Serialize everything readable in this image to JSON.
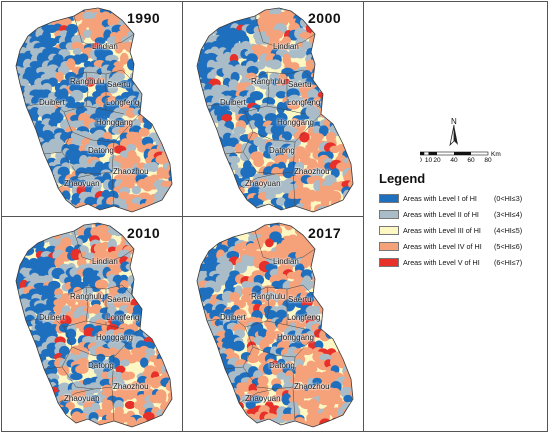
{
  "panels": [
    {
      "year": "1990",
      "seed": 3
    },
    {
      "year": "2000",
      "seed": 11
    },
    {
      "year": "2010",
      "seed": 23
    },
    {
      "year": "2017",
      "seed": 37
    }
  ],
  "places": [
    "Lindian",
    "Ranghulu",
    "Saertu",
    "Longfeng",
    "Honggang",
    "Duibert",
    "Datong",
    "Zhaoyuan",
    "Zhaozhou"
  ],
  "legend": {
    "title": "Legend",
    "items": [
      {
        "label": "Areas with Level  I of HI",
        "range": "(0<HI≤3)",
        "color": "#1f6fbf"
      },
      {
        "label": "Areas with Level  II of HI",
        "range": "(3<HI≤4)",
        "color": "#a9bcc8"
      },
      {
        "label": "Areas with Level  III of HI",
        "range": "(4<HI≤5)",
        "color": "#fdf7c3"
      },
      {
        "label": "Areas with Level  IV of HI",
        "range": "(5<HI≤6)",
        "color": "#f5a17a"
      },
      {
        "label": "Areas with Level  V of HI",
        "range": "(6<HI≤7)",
        "color": "#e8302a"
      }
    ]
  },
  "north_arrow": {
    "letter": "N"
  },
  "scale_bar": {
    "ticks": [
      "0",
      "10",
      "20",
      "40",
      "60",
      "80"
    ],
    "unit": "Km"
  }
}
